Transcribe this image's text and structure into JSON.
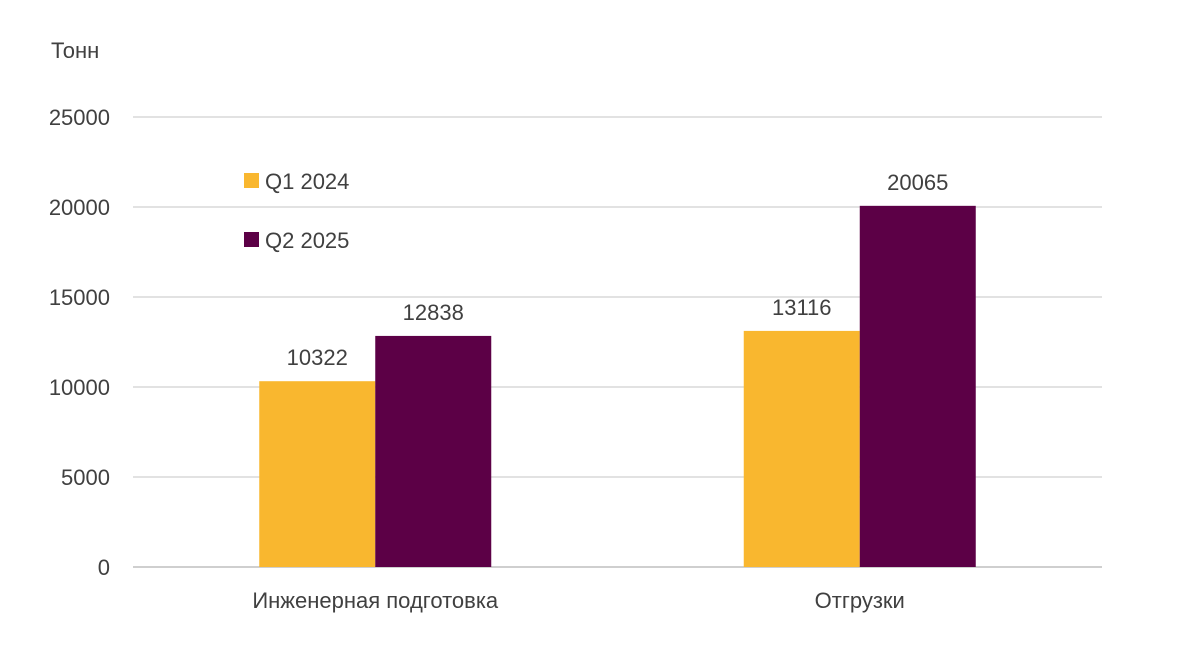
{
  "chart_data": {
    "type": "bar",
    "ylabel": "Тонн",
    "categories": [
      "Инженерная подготовка",
      "Отгрузки"
    ],
    "series": [
      {
        "name": "Q1 2024",
        "values": [
          10322,
          13116
        ],
        "color": "#F9B72F"
      },
      {
        "name": "Q2 2025",
        "values": [
          12838,
          20065
        ],
        "color": "#5C0046"
      }
    ],
    "ylim": [
      0,
      25000
    ],
    "yticks": [
      0,
      5000,
      10000,
      15000,
      20000,
      25000
    ],
    "grid": true,
    "legend_position": "top-left",
    "data_labels": true
  }
}
